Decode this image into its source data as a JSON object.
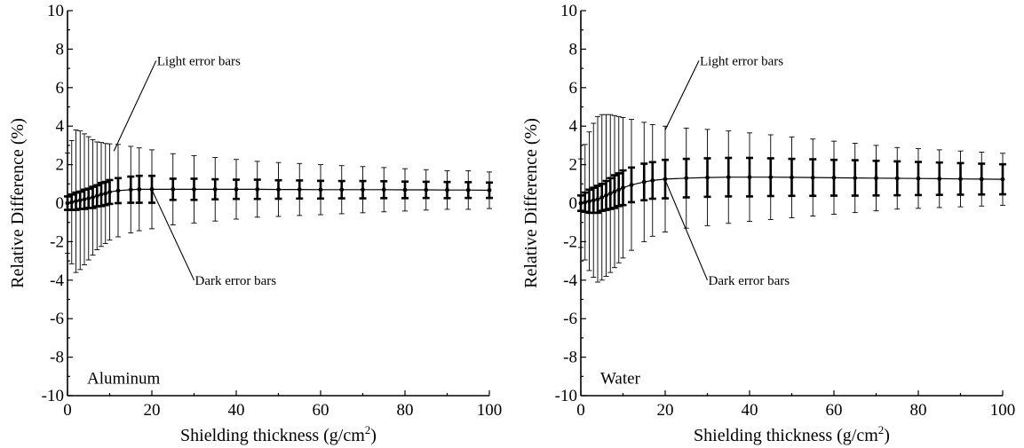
{
  "chart_data": [
    {
      "type": "line",
      "panel_label": "Aluminum",
      "xlabel": "Shielding thickness (g/cm",
      "xlabel_sup": "2",
      "xlabel_close": ")",
      "ylabel": "Relative Difference (%)",
      "xlim": [
        0,
        100
      ],
      "ylim": [
        -10,
        10
      ],
      "x_ticks": [
        0,
        20,
        40,
        60,
        80,
        100
      ],
      "y_ticks": [
        -10,
        -8,
        -6,
        -4,
        -2,
        0,
        2,
        4,
        6,
        8,
        10
      ],
      "grid": false,
      "annotations": [
        {
          "text": "Light error bars",
          "target": [
            11,
            2.7
          ],
          "label_at": [
            21,
            7.4
          ]
        },
        {
          "text": "Dark error bars",
          "target": [
            20,
            0.7
          ],
          "label_at": [
            30,
            -4.0
          ]
        }
      ],
      "x": [
        0,
        1,
        2,
        3,
        4,
        5,
        6,
        7,
        8,
        9,
        10,
        12,
        15,
        17,
        20,
        25,
        30,
        35,
        40,
        45,
        50,
        55,
        60,
        65,
        70,
        75,
        80,
        85,
        90,
        95,
        100
      ],
      "y": [
        0.0,
        0.05,
        0.1,
        0.15,
        0.2,
        0.25,
        0.3,
        0.38,
        0.45,
        0.5,
        0.58,
        0.65,
        0.7,
        0.72,
        0.72,
        0.72,
        0.72,
        0.72,
        0.72,
        0.72,
        0.71,
        0.71,
        0.7,
        0.7,
        0.7,
        0.7,
        0.69,
        0.69,
        0.68,
        0.68,
        0.67
      ],
      "dark_err": [
        0.35,
        0.4,
        0.45,
        0.45,
        0.5,
        0.5,
        0.55,
        0.55,
        0.6,
        0.6,
        0.62,
        0.65,
        0.68,
        0.7,
        0.7,
        0.55,
        0.55,
        0.52,
        0.5,
        0.5,
        0.48,
        0.47,
        0.46,
        0.45,
        0.45,
        0.44,
        0.43,
        0.42,
        0.42,
        0.41,
        0.4
      ],
      "light_err": [
        2.6,
        3.2,
        3.7,
        3.6,
        3.4,
        3.2,
        3.0,
        2.8,
        2.7,
        2.6,
        2.5,
        2.4,
        2.25,
        2.15,
        2.05,
        1.85,
        1.75,
        1.65,
        1.55,
        1.45,
        1.4,
        1.35,
        1.3,
        1.25,
        1.2,
        1.15,
        1.1,
        1.05,
        1.0,
        1.0,
        0.95
      ]
    },
    {
      "type": "line",
      "panel_label": "Water",
      "xlabel": "Shielding thickness (g/cm",
      "xlabel_sup": "2",
      "xlabel_close": ")",
      "ylabel": "Relative Difference (%)",
      "xlim": [
        0,
        100
      ],
      "ylim": [
        -10,
        10
      ],
      "x_ticks": [
        0,
        20,
        40,
        60,
        80,
        100
      ],
      "y_ticks": [
        -10,
        -8,
        -6,
        -4,
        -2,
        0,
        2,
        4,
        6,
        8,
        10
      ],
      "grid": false,
      "annotations": [
        {
          "text": "Light error bars",
          "target": [
            20,
            3.8
          ],
          "label_at": [
            28,
            7.4
          ]
        },
        {
          "text": "Dark error bars",
          "target": [
            20,
            1.2
          ],
          "label_at": [
            30,
            -4.0
          ]
        }
      ],
      "x": [
        0,
        1,
        2,
        3,
        4,
        5,
        6,
        7,
        8,
        9,
        10,
        12,
        15,
        17,
        20,
        25,
        30,
        35,
        40,
        45,
        50,
        55,
        60,
        65,
        70,
        75,
        80,
        85,
        90,
        95,
        100
      ],
      "y": [
        0.0,
        0.05,
        0.1,
        0.15,
        0.2,
        0.3,
        0.4,
        0.5,
        0.6,
        0.7,
        0.8,
        0.95,
        1.1,
        1.18,
        1.25,
        1.3,
        1.33,
        1.35,
        1.35,
        1.35,
        1.34,
        1.33,
        1.32,
        1.31,
        1.3,
        1.29,
        1.28,
        1.27,
        1.26,
        1.25,
        1.24
      ],
      "dark_err": [
        0.4,
        0.5,
        0.6,
        0.65,
        0.7,
        0.7,
        0.75,
        0.8,
        0.85,
        0.85,
        0.9,
        0.9,
        0.95,
        0.95,
        1.0,
        1.0,
        1.0,
        1.0,
        1.0,
        0.98,
        0.96,
        0.95,
        0.93,
        0.92,
        0.9,
        0.88,
        0.86,
        0.84,
        0.82,
        0.8,
        0.78
      ],
      "light_err": [
        2.3,
        3.0,
        3.6,
        4.0,
        4.3,
        4.3,
        4.2,
        4.1,
        3.95,
        3.8,
        3.65,
        3.4,
        3.1,
        2.9,
        2.75,
        2.6,
        2.5,
        2.4,
        2.3,
        2.2,
        2.1,
        2.0,
        1.9,
        1.8,
        1.7,
        1.6,
        1.55,
        1.5,
        1.45,
        1.4,
        1.35
      ]
    }
  ]
}
